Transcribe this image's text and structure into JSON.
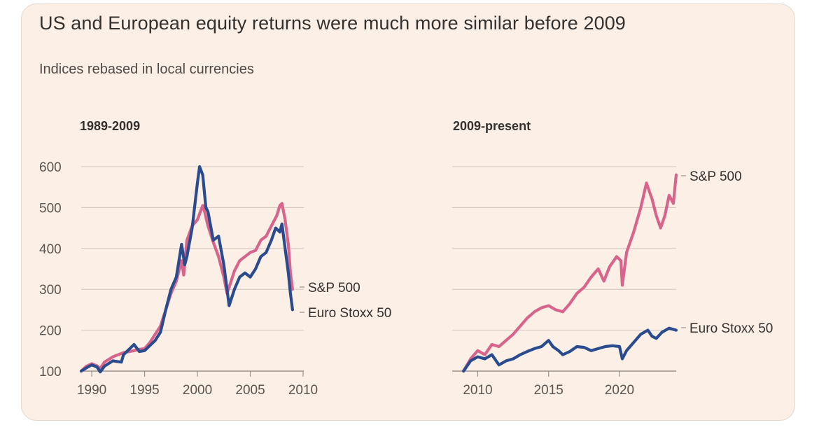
{
  "title": "US and European equity returns were much more similar before 2009",
  "subtitle": "Indices rebased in local currencies",
  "colors": {
    "sp500": "#d7658b",
    "eurostoxx": "#2b4b8f",
    "grid": "#cfc6bf",
    "background": "#fbefe6"
  },
  "chart_data": [
    {
      "type": "line",
      "title": "1989-2009",
      "xlabel": "",
      "ylabel": "",
      "xlim": [
        1989,
        2010
      ],
      "ylim": [
        100,
        600
      ],
      "yticks": [
        100,
        200,
        300,
        400,
        500,
        600
      ],
      "ytick_labels": [
        "100",
        "200",
        "300",
        "400",
        "500",
        "600"
      ],
      "xticks": [
        1990,
        1995,
        2000,
        2005,
        2010
      ],
      "xtick_labels": [
        "1990",
        "1995",
        "2000",
        "2005",
        "2010"
      ],
      "series": [
        {
          "name": "S&P 500",
          "x": [
            1989.0,
            1989.5,
            1990.0,
            1990.5,
            1990.8,
            1991.2,
            1992.0,
            1993.0,
            1994.0,
            1994.5,
            1995.0,
            1995.5,
            1996.0,
            1996.5,
            1997.0,
            1997.5,
            1998.0,
            1998.5,
            1998.7,
            1999.0,
            1999.5,
            2000.0,
            2000.5,
            2000.7,
            2001.0,
            2001.5,
            2002.0,
            2002.5,
            2002.8,
            2003.0,
            2003.5,
            2004.0,
            2004.5,
            2005.0,
            2005.5,
            2006.0,
            2006.5,
            2007.0,
            2007.5,
            2007.8,
            2008.0,
            2008.3,
            2008.6,
            2008.8,
            2009.0
          ],
          "values": [
            100,
            112,
            118,
            113,
            106,
            122,
            135,
            145,
            150,
            153,
            155,
            170,
            190,
            210,
            250,
            290,
            320,
            370,
            335,
            420,
            455,
            470,
            505,
            488,
            455,
            415,
            380,
            330,
            290,
            305,
            345,
            370,
            380,
            390,
            395,
            420,
            430,
            455,
            480,
            505,
            510,
            470,
            410,
            340,
            300
          ]
        },
        {
          "name": "Euro Stoxx 50",
          "x": [
            1989.0,
            1989.5,
            1990.0,
            1990.5,
            1990.8,
            1991.2,
            1992.0,
            1992.8,
            1993.0,
            1994.0,
            1994.5,
            1995.0,
            1996.0,
            1996.5,
            1997.0,
            1997.5,
            1998.0,
            1998.5,
            1998.8,
            1999.0,
            1999.5,
            2000.0,
            2000.2,
            2000.5,
            2000.8,
            2001.0,
            2001.5,
            2002.0,
            2002.5,
            2002.8,
            2003.0,
            2003.5,
            2004.0,
            2004.5,
            2005.0,
            2005.5,
            2006.0,
            2006.5,
            2007.0,
            2007.4,
            2007.8,
            2008.0,
            2008.3,
            2008.6,
            2008.8,
            2009.0
          ],
          "values": [
            100,
            108,
            115,
            110,
            98,
            112,
            125,
            122,
            140,
            165,
            148,
            150,
            175,
            195,
            250,
            300,
            330,
            410,
            360,
            380,
            450,
            560,
            600,
            580,
            500,
            490,
            420,
            430,
            360,
            300,
            260,
            300,
            330,
            340,
            330,
            350,
            380,
            390,
            420,
            450,
            440,
            460,
            400,
            340,
            290,
            250
          ]
        }
      ],
      "annotations": [
        "S&P 500",
        "Euro Stoxx 50"
      ]
    },
    {
      "type": "line",
      "title": "2009-present",
      "xlabel": "",
      "ylabel": "",
      "xlim": [
        2008.2,
        2024.0
      ],
      "ylim": [
        100,
        600
      ],
      "xticks": [
        2010,
        2015,
        2020
      ],
      "xtick_labels": [
        "2010",
        "2015",
        "2020"
      ],
      "series": [
        {
          "name": "S&P 500",
          "x": [
            2009.0,
            2009.5,
            2010.0,
            2010.5,
            2011.0,
            2011.5,
            2012.0,
            2012.5,
            2013.0,
            2013.5,
            2014.0,
            2014.5,
            2015.0,
            2015.5,
            2016.0,
            2016.5,
            2017.0,
            2017.5,
            2018.0,
            2018.5,
            2018.9,
            2019.3,
            2019.8,
            2020.1,
            2020.2,
            2020.5,
            2021.0,
            2021.5,
            2021.9,
            2022.3,
            2022.6,
            2022.9,
            2023.2,
            2023.5,
            2023.8,
            2024.0
          ],
          "values": [
            100,
            130,
            150,
            140,
            165,
            160,
            175,
            190,
            210,
            230,
            245,
            255,
            260,
            250,
            245,
            265,
            290,
            305,
            330,
            350,
            320,
            355,
            380,
            370,
            310,
            390,
            440,
            500,
            560,
            520,
            480,
            450,
            480,
            530,
            510,
            580
          ]
        },
        {
          "name": "Euro Stoxx 50",
          "x": [
            2009.0,
            2009.5,
            2010.0,
            2010.5,
            2011.0,
            2011.5,
            2012.0,
            2012.5,
            2013.0,
            2013.5,
            2014.0,
            2014.5,
            2015.0,
            2015.3,
            2015.7,
            2016.0,
            2016.5,
            2017.0,
            2017.5,
            2018.0,
            2018.5,
            2019.0,
            2019.5,
            2020.0,
            2020.2,
            2020.5,
            2021.0,
            2021.5,
            2022.0,
            2022.3,
            2022.6,
            2023.0,
            2023.5,
            2024.0
          ],
          "values": [
            100,
            125,
            135,
            130,
            140,
            115,
            125,
            130,
            140,
            148,
            155,
            160,
            175,
            160,
            150,
            140,
            148,
            160,
            158,
            150,
            155,
            160,
            162,
            160,
            130,
            150,
            170,
            190,
            200,
            185,
            180,
            195,
            205,
            200
          ]
        }
      ],
      "annotations": [
        "S&P 500",
        "Euro Stoxx 50"
      ]
    }
  ]
}
